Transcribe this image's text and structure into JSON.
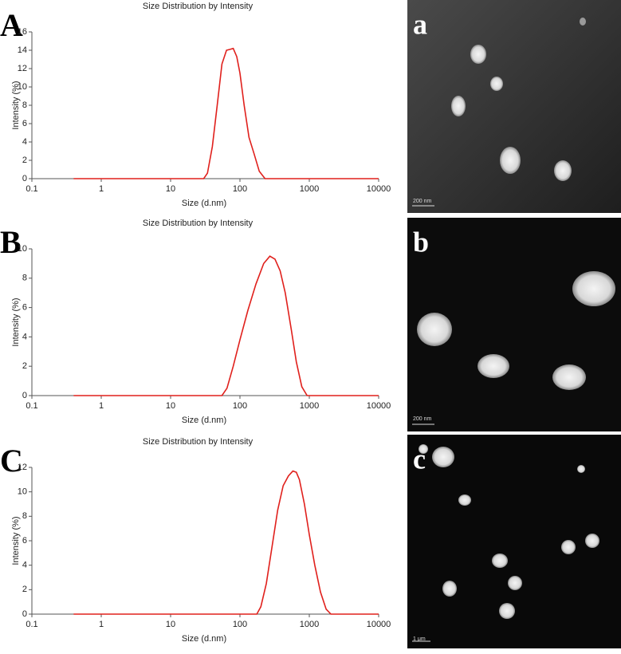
{
  "chart_data": [
    {
      "type": "line",
      "panel": "A",
      "title": "Size Distribution by Intensity",
      "xlabel": "Size (d.nm)",
      "ylabel": "Intensity (%)",
      "log_x": true,
      "color": "#e0201c",
      "x": [
        0.4,
        30,
        34,
        40,
        47,
        55,
        64,
        72,
        80,
        90,
        100,
        115,
        135,
        160,
        190,
        230,
        10000
      ],
      "values": [
        0,
        0,
        0.6,
        3.5,
        8,
        12.5,
        14,
        14.1,
        14.2,
        13.3,
        11.5,
        8,
        4.5,
        2.7,
        0.8,
        0,
        0
      ],
      "xlim": [
        0.1,
        10000
      ],
      "xticks": [
        0.1,
        1,
        10,
        100,
        1000,
        10000
      ],
      "ylim": [
        0,
        16
      ],
      "yticks": [
        0,
        2,
        4,
        6,
        8,
        10,
        12,
        14,
        16
      ]
    },
    {
      "type": "line",
      "panel": "B",
      "title": "Size Distribution by Intensity",
      "xlabel": "Size (d.nm)",
      "ylabel": "Intensity (%)",
      "log_x": true,
      "color": "#e0201c",
      "x": [
        0.4,
        55,
        65,
        80,
        100,
        130,
        170,
        220,
        270,
        320,
        380,
        450,
        550,
        650,
        780,
        930,
        10000
      ],
      "values": [
        0,
        0,
        0.5,
        2,
        3.8,
        5.8,
        7.6,
        9,
        9.5,
        9.3,
        8.5,
        7,
        4.5,
        2.3,
        0.6,
        0,
        0
      ],
      "xlim": [
        0.1,
        10000
      ],
      "xticks": [
        0.1,
        1,
        10,
        100,
        1000,
        10000
      ],
      "ylim": [
        0,
        10
      ],
      "yticks": [
        0,
        2,
        4,
        6,
        8,
        10
      ]
    },
    {
      "type": "line",
      "panel": "C",
      "title": "Size Distribution by Intensity",
      "xlabel": "Size (d.nm)",
      "ylabel": "Intensity (%)",
      "log_x": true,
      "color": "#e0201c",
      "x": [
        0.4,
        175,
        200,
        240,
        290,
        350,
        420,
        500,
        580,
        650,
        720,
        850,
        1000,
        1200,
        1450,
        1750,
        2050,
        10000
      ],
      "values": [
        0,
        0,
        0.6,
        2.5,
        5.5,
        8.5,
        10.5,
        11.3,
        11.7,
        11.6,
        11,
        9,
        6.5,
        4,
        1.8,
        0.4,
        0,
        0
      ],
      "xlim": [
        0.1,
        10000
      ],
      "xticks": [
        0.1,
        1,
        10,
        100,
        1000,
        10000
      ],
      "ylim": [
        0,
        12
      ],
      "yticks": [
        0,
        2,
        4,
        6,
        8,
        10,
        12
      ]
    }
  ],
  "images": [
    {
      "label": "a",
      "scale_bar": "200 nm"
    },
    {
      "label": "b",
      "scale_bar": "200 nm"
    },
    {
      "label": "c",
      "scale_bar": "1 μm"
    }
  ]
}
